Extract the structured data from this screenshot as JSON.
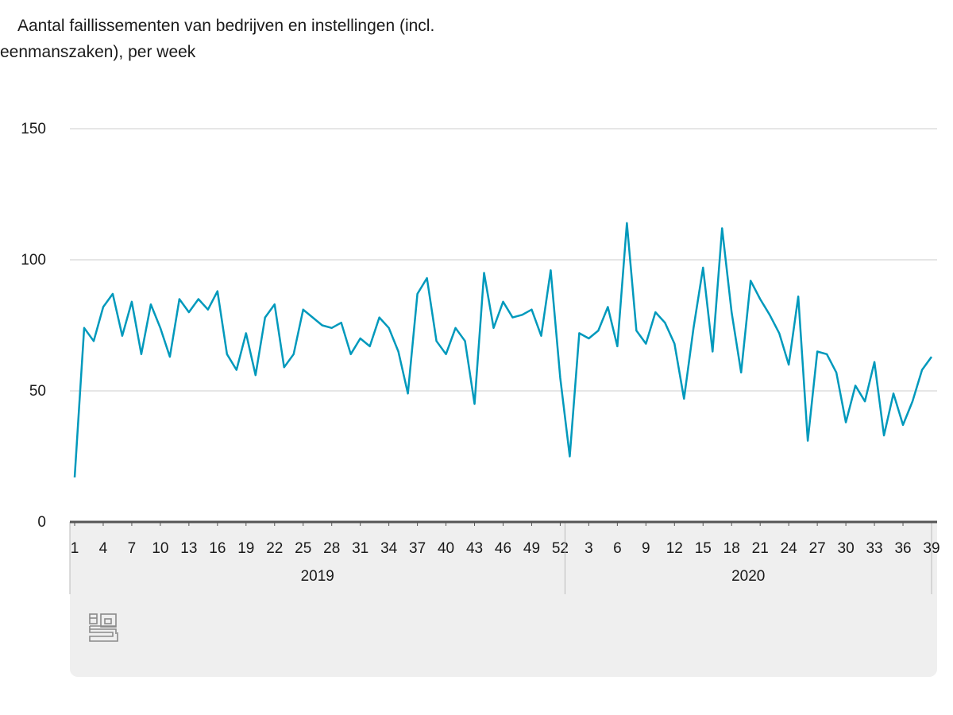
{
  "chart_data": {
    "type": "line",
    "title": "Aantal faillissementen van bedrijven en instellingen (incl. eenmanszaken), per week",
    "xlabel": "",
    "ylabel": "",
    "ylim": [
      0,
      150
    ],
    "yticks": [
      0,
      50,
      100,
      150
    ],
    "grid": true,
    "colors": {
      "line": "#0099bc",
      "grid": "#cccccc",
      "axis": "#555555",
      "panel": "#efefef"
    },
    "years": [
      {
        "label": "2019",
        "weeks": 52
      },
      {
        "label": "2020",
        "weeks": 39
      }
    ],
    "x_tick_labels": [
      "1",
      "4",
      "7",
      "10",
      "13",
      "16",
      "19",
      "22",
      "25",
      "28",
      "31",
      "34",
      "37",
      "40",
      "43",
      "46",
      "49",
      "52",
      "3",
      "6",
      "9",
      "12",
      "15",
      "18",
      "21",
      "24",
      "27",
      "30",
      "33",
      "36",
      "39"
    ],
    "series": [
      {
        "values": [
          17,
          74,
          69,
          82,
          87,
          71,
          84,
          64,
          83,
          74,
          63,
          85,
          80,
          85,
          81,
          88,
          64,
          58,
          72,
          56,
          78,
          83,
          59,
          64,
          81,
          78,
          75,
          74,
          76,
          64,
          70,
          67,
          78,
          74,
          65,
          49,
          87,
          93,
          69,
          64,
          74,
          69,
          45,
          95,
          74,
          84,
          78,
          79,
          81,
          71,
          96,
          55,
          25,
          72,
          70,
          73,
          82,
          67,
          114,
          73,
          68,
          80,
          76,
          68,
          47,
          74,
          97,
          65,
          112,
          80,
          57,
          92,
          85,
          79,
          72,
          60,
          86,
          31,
          65,
          64,
          57,
          38,
          52,
          46,
          61,
          33,
          49,
          37,
          46,
          58,
          63
        ]
      }
    ]
  },
  "logo": {
    "icon": "cbs-logo-icon"
  }
}
